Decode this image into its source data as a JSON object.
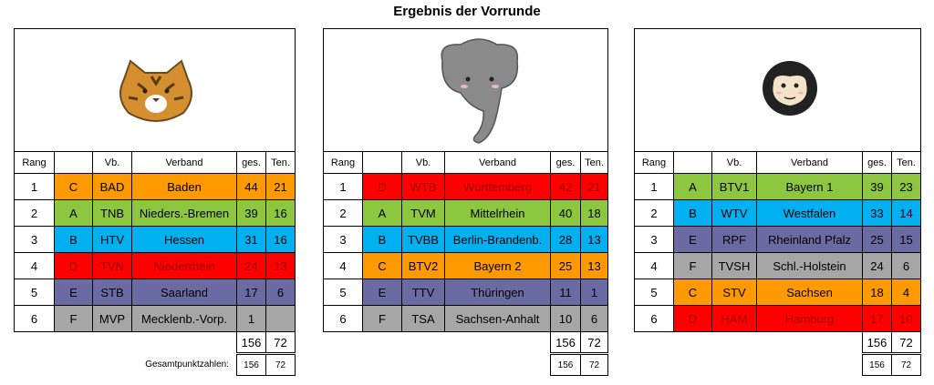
{
  "title": "Ergebnis der Vorrunde",
  "header": {
    "rang": "Rang",
    "vb": "Vb.",
    "verband": "Verband",
    "ges": "ges.",
    "ten": "Ten."
  },
  "group_colors": {
    "A": "#8dc63f",
    "B": "#00b0f0",
    "C": "#ff9900",
    "D": "#ff0000",
    "E": "#6b6ba3",
    "F": "#a6a6a6"
  },
  "group_text_colors": {
    "D": "#a00000"
  },
  "tables": [
    {
      "rows": [
        [
          1,
          "C",
          "BAD",
          "Baden",
          44,
          21
        ],
        [
          2,
          "A",
          "TNB",
          "Nieders.-Bremen",
          39,
          16
        ],
        [
          3,
          "B",
          "HTV",
          "Hessen",
          31,
          16
        ],
        [
          4,
          "D",
          "TVN",
          "Niederrhein",
          24,
          13
        ],
        [
          5,
          "E",
          "STB",
          "Saarland",
          17,
          6
        ],
        [
          6,
          "F",
          "MVP",
          "Mecklenb.-Vorp.",
          1,
          null
        ]
      ],
      "totals": {
        "ges": 156,
        "ten": 72
      },
      "totals_small": {
        "label": "Gesamtpunktzahlen:",
        "ges": 156,
        "ten": 72
      }
    },
    {
      "rows": [
        [
          1,
          "D",
          "WTB",
          "Württemberg",
          42,
          21
        ],
        [
          2,
          "A",
          "TVM",
          "Mittelrhein",
          40,
          18
        ],
        [
          3,
          "B",
          "TVBB",
          "Berlin-Brandenb.",
          28,
          13
        ],
        [
          4,
          "C",
          "BTV2",
          "Bayern 2",
          25,
          13
        ],
        [
          5,
          "E",
          "TTV",
          "Thüringen",
          11,
          1
        ],
        [
          6,
          "F",
          "TSA",
          "Sachsen-Anhalt",
          10,
          6
        ]
      ],
      "totals": {
        "ges": 156,
        "ten": 72
      },
      "totals_small": {
        "ges": 156,
        "ten": 72
      }
    },
    {
      "rows": [
        [
          1,
          "A",
          "BTV1",
          "Bayern 1",
          39,
          23
        ],
        [
          2,
          "B",
          "WTV",
          "Westfalen",
          33,
          14
        ],
        [
          3,
          "E",
          "RPF",
          "Rheinland Pfalz",
          25,
          15
        ],
        [
          4,
          "F",
          "TVSH",
          "Schl.-Holstein",
          24,
          6
        ],
        [
          5,
          "C",
          "STV",
          "Sachsen",
          18,
          4
        ],
        [
          6,
          "D",
          "HAM",
          "Hamburg",
          17,
          10
        ]
      ],
      "totals": {
        "ges": 156,
        "ten": 72
      },
      "totals_small": {
        "ges": 156,
        "ten": 72
      }
    }
  ]
}
